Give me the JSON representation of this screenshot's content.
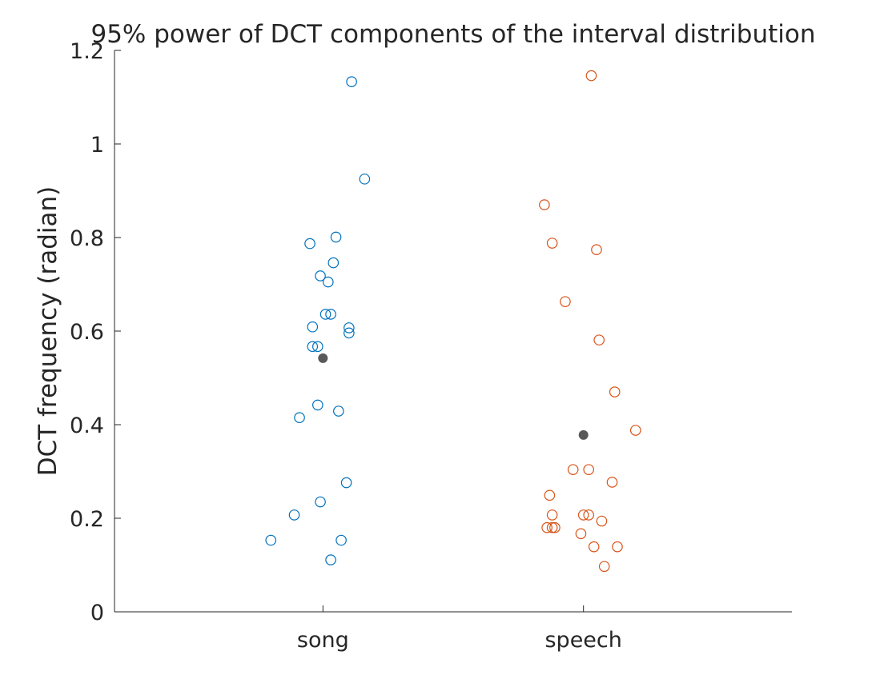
{
  "chart_data": {
    "type": "scatter",
    "title": "95% power of DCT components of the interval distribution",
    "xlabel": "",
    "ylabel": "DCT frequency (radian)",
    "ylim": [
      0,
      1.2
    ],
    "yticks": [
      0,
      0.2,
      0.4,
      0.6,
      0.8,
      1,
      1.2
    ],
    "ytick_labels": [
      "0",
      "0.2",
      "0.4",
      "0.6",
      "0.8",
      "1",
      "1.2"
    ],
    "categories": [
      "song",
      "speech"
    ],
    "xlim": [
      0.2,
      2.8
    ],
    "grid": false,
    "legend": "none",
    "series": [
      {
        "category": "song",
        "color": "#0072BD",
        "marker": "open-circle",
        "points": [
          {
            "x": 1.11,
            "y": 1.133
          },
          {
            "x": 1.16,
            "y": 0.925
          },
          {
            "x": 1.05,
            "y": 0.801
          },
          {
            "x": 0.95,
            "y": 0.787
          },
          {
            "x": 1.04,
            "y": 0.746
          },
          {
            "x": 0.99,
            "y": 0.718
          },
          {
            "x": 1.02,
            "y": 0.705
          },
          {
            "x": 1.01,
            "y": 0.636
          },
          {
            "x": 1.03,
            "y": 0.636
          },
          {
            "x": 0.96,
            "y": 0.609
          },
          {
            "x": 1.1,
            "y": 0.607
          },
          {
            "x": 1.1,
            "y": 0.596
          },
          {
            "x": 0.96,
            "y": 0.567
          },
          {
            "x": 0.98,
            "y": 0.567
          },
          {
            "x": 0.98,
            "y": 0.442
          },
          {
            "x": 1.06,
            "y": 0.429
          },
          {
            "x": 0.91,
            "y": 0.415
          },
          {
            "x": 1.09,
            "y": 0.276
          },
          {
            "x": 0.99,
            "y": 0.235
          },
          {
            "x": 0.89,
            "y": 0.207
          },
          {
            "x": 0.8,
            "y": 0.153
          },
          {
            "x": 1.07,
            "y": 0.153
          },
          {
            "x": 1.03,
            "y": 0.111
          }
        ],
        "mean": {
          "x": 1.0,
          "y": 0.542
        }
      },
      {
        "category": "speech",
        "color": "#D95319",
        "marker": "open-circle",
        "points": [
          {
            "x": 2.03,
            "y": 1.146
          },
          {
            "x": 1.85,
            "y": 0.87
          },
          {
            "x": 1.88,
            "y": 0.788
          },
          {
            "x": 2.05,
            "y": 0.774
          },
          {
            "x": 1.93,
            "y": 0.663
          },
          {
            "x": 2.06,
            "y": 0.581
          },
          {
            "x": 2.12,
            "y": 0.47
          },
          {
            "x": 2.2,
            "y": 0.388
          },
          {
            "x": 1.96,
            "y": 0.304
          },
          {
            "x": 2.02,
            "y": 0.304
          },
          {
            "x": 2.11,
            "y": 0.277
          },
          {
            "x": 1.87,
            "y": 0.249
          },
          {
            "x": 1.88,
            "y": 0.207
          },
          {
            "x": 2.0,
            "y": 0.207
          },
          {
            "x": 2.02,
            "y": 0.207
          },
          {
            "x": 2.07,
            "y": 0.194
          },
          {
            "x": 1.86,
            "y": 0.18
          },
          {
            "x": 1.88,
            "y": 0.18
          },
          {
            "x": 1.89,
            "y": 0.18
          },
          {
            "x": 1.99,
            "y": 0.167
          },
          {
            "x": 2.04,
            "y": 0.139
          },
          {
            "x": 2.13,
            "y": 0.139
          },
          {
            "x": 2.08,
            "y": 0.097
          }
        ],
        "mean": {
          "x": 2.0,
          "y": 0.378
        }
      }
    ],
    "mean_marker_color": "#595959"
  }
}
